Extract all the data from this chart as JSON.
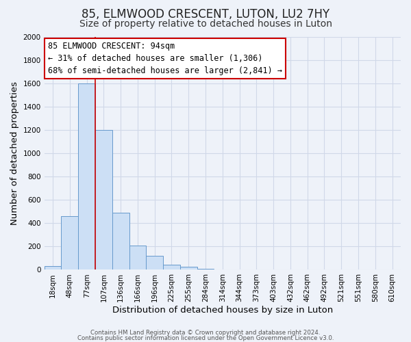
{
  "title": "85, ELMWOOD CRESCENT, LUTON, LU2 7HY",
  "subtitle": "Size of property relative to detached houses in Luton",
  "xlabel": "Distribution of detached houses by size in Luton",
  "ylabel": "Number of detached properties",
  "bar_labels": [
    "18sqm",
    "48sqm",
    "77sqm",
    "107sqm",
    "136sqm",
    "166sqm",
    "196sqm",
    "225sqm",
    "255sqm",
    "284sqm",
    "314sqm",
    "344sqm",
    "373sqm",
    "403sqm",
    "432sqm",
    "462sqm",
    "492sqm",
    "521sqm",
    "551sqm",
    "580sqm",
    "610sqm"
  ],
  "bar_values": [
    35,
    460,
    1600,
    1200,
    490,
    210,
    120,
    45,
    25,
    10,
    5,
    3,
    2,
    2,
    2,
    2,
    2,
    2,
    2,
    2,
    2
  ],
  "bar_color": "#ccdff5",
  "bar_edge_color": "#6699cc",
  "ylim": [
    0,
    2000
  ],
  "yticks": [
    0,
    200,
    400,
    600,
    800,
    1000,
    1200,
    1400,
    1600,
    1800,
    2000
  ],
  "property_line_x": 2.5,
  "annotation_text": "85 ELMWOOD CRESCENT: 94sqm\n← 31% of detached houses are smaller (1,306)\n68% of semi-detached houses are larger (2,841) →",
  "annotation_box_color": "#ffffff",
  "annotation_box_edge": "#cc0000",
  "red_line_color": "#cc0000",
  "footer1": "Contains HM Land Registry data © Crown copyright and database right 2024.",
  "footer2": "Contains public sector information licensed under the Open Government Licence v3.0.",
  "bg_color": "#eef2f9",
  "grid_color": "#d0d8e8",
  "title_fontsize": 12,
  "subtitle_fontsize": 10,
  "axis_label_fontsize": 9.5,
  "tick_fontsize": 7.5,
  "annotation_fontsize": 8.5
}
